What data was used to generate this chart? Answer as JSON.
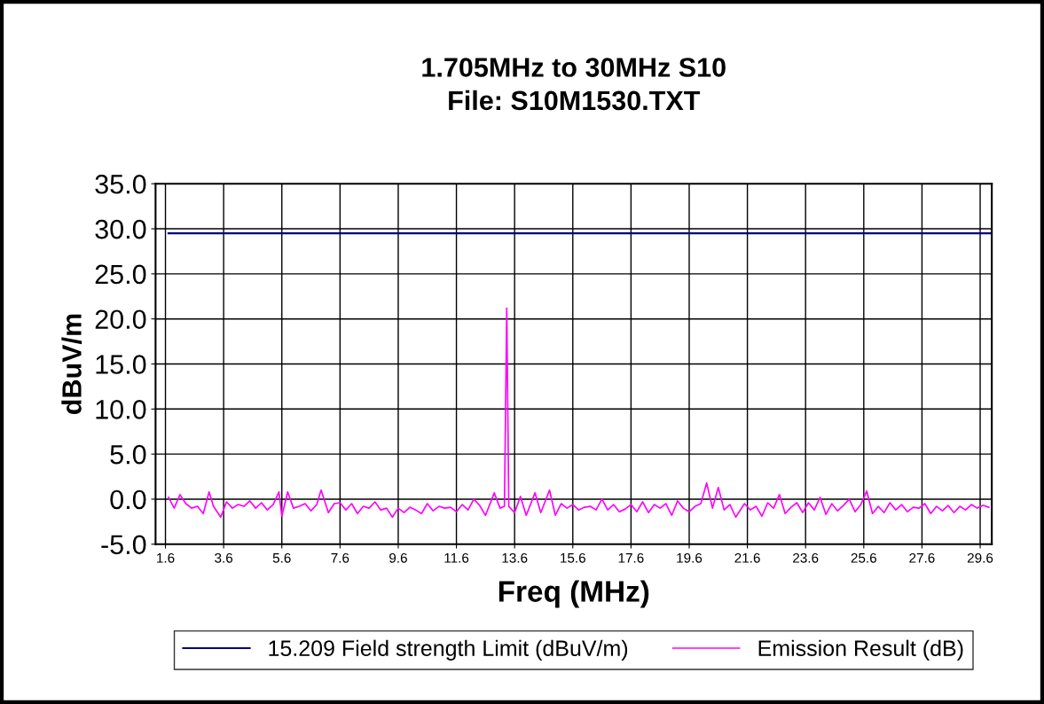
{
  "chart_data": {
    "type": "line",
    "title": "1.705MHz to 30MHz S10\nFile: S10M1530.TXT",
    "xlabel": "Freq (MHz)",
    "ylabel": "dBuV/m",
    "xlim": [
      1.26,
      30.0
    ],
    "xticks": [
      1.6,
      3.6,
      5.6,
      7.6,
      9.6,
      11.6,
      13.6,
      15.6,
      17.6,
      19.6,
      21.6,
      23.6,
      25.6,
      27.6,
      29.6
    ],
    "ylim": [
      -5,
      35
    ],
    "yticks": [
      {
        "value": -5,
        "label": "-5.0"
      },
      {
        "value": 0,
        "label": "0.0"
      },
      {
        "value": 5,
        "label": "5.0"
      },
      {
        "value": 10,
        "label": "10.0"
      },
      {
        "value": 15,
        "label": "15.0"
      },
      {
        "value": 20,
        "label": "20.0"
      },
      {
        "value": 25,
        "label": "25.0"
      },
      {
        "value": 30,
        "label": "30.0"
      },
      {
        "value": 35,
        "label": "35.0"
      }
    ],
    "grid": true,
    "legend": "bottom",
    "marker": "none",
    "line_style": "solid",
    "series": [
      {
        "name": "15.209 Field strength Limit (dBuV/m)",
        "color": "#000080",
        "x": [
          1.705,
          30.0
        ],
        "values": [
          29.5,
          29.5
        ]
      },
      {
        "name": "Emission Result (dB)",
        "color": "#ff00ff",
        "x": [
          1.705,
          1.9,
          2.1,
          2.3,
          2.5,
          2.7,
          2.9,
          3.1,
          3.25,
          3.5,
          3.7,
          3.9,
          4.1,
          4.3,
          4.5,
          4.7,
          4.9,
          5.1,
          5.3,
          5.5,
          5.6,
          5.8,
          6.0,
          6.2,
          6.4,
          6.6,
          6.8,
          6.95,
          7.2,
          7.4,
          7.6,
          7.8,
          8.0,
          8.2,
          8.4,
          8.6,
          8.8,
          9.0,
          9.2,
          9.4,
          9.6,
          9.8,
          10.0,
          10.2,
          10.4,
          10.6,
          10.8,
          11.0,
          11.2,
          11.4,
          11.6,
          11.8,
          12.0,
          12.2,
          12.4,
          12.6,
          12.9,
          13.1,
          13.25,
          13.33,
          13.4,
          13.6,
          13.8,
          14.0,
          14.3,
          14.5,
          14.8,
          15.0,
          15.2,
          15.4,
          15.6,
          15.8,
          16.0,
          16.2,
          16.4,
          16.6,
          16.8,
          17.0,
          17.2,
          17.4,
          17.6,
          17.8,
          18.0,
          18.2,
          18.4,
          18.6,
          18.8,
          19.0,
          19.2,
          19.4,
          19.6,
          19.8,
          20.0,
          20.2,
          20.4,
          20.6,
          20.8,
          21.0,
          21.2,
          21.5,
          21.7,
          21.9,
          22.1,
          22.3,
          22.5,
          22.7,
          22.9,
          23.1,
          23.3,
          23.5,
          23.7,
          23.9,
          24.1,
          24.3,
          24.5,
          24.7,
          24.9,
          25.1,
          25.3,
          25.5,
          25.7,
          25.9,
          26.1,
          26.3,
          26.5,
          26.7,
          26.9,
          27.1,
          27.3,
          27.5,
          27.7,
          27.9,
          28.1,
          28.3,
          28.5,
          28.7,
          28.9,
          29.1,
          29.3,
          29.5,
          29.7,
          29.9
        ],
        "values": [
          0.2,
          -1.0,
          0.5,
          -0.5,
          -1.0,
          -0.8,
          -1.6,
          0.8,
          -0.8,
          -2.0,
          -0.3,
          -1.0,
          -0.6,
          -0.8,
          -0.2,
          -1.0,
          -0.4,
          -1.2,
          -0.6,
          0.8,
          -1.9,
          0.8,
          -1.0,
          -0.8,
          -0.5,
          -1.3,
          -0.6,
          1.0,
          -1.5,
          -0.5,
          -0.4,
          -1.2,
          -0.5,
          -1.6,
          -0.8,
          -1.0,
          -0.3,
          -1.2,
          -1.0,
          -2.0,
          -1.0,
          -1.5,
          -0.9,
          -1.2,
          -1.6,
          -0.5,
          -1.3,
          -0.8,
          -1.0,
          -0.9,
          -1.4,
          -0.6,
          -1.2,
          0.0,
          -0.7,
          -1.8,
          0.7,
          -1.0,
          -0.8,
          21.2,
          -0.8,
          -1.5,
          0.3,
          -1.8,
          0.7,
          -1.5,
          1.0,
          -1.8,
          -0.5,
          -1.0,
          -0.6,
          -1.2,
          -0.9,
          -0.8,
          -1.2,
          0.0,
          -1.2,
          -0.6,
          -1.4,
          -1.1,
          -0.6,
          -1.4,
          -0.3,
          -1.5,
          -0.6,
          -1.0,
          -0.5,
          -1.8,
          -0.2,
          -1.0,
          -1.4,
          -0.8,
          -0.5,
          1.8,
          -1.0,
          1.3,
          -1.2,
          -0.6,
          -2.0,
          -0.5,
          -1.2,
          -0.8,
          -1.9,
          -0.4,
          -1.0,
          0.5,
          -1.6,
          -0.9,
          -0.4,
          -1.5,
          -0.4,
          -1.2,
          0.2,
          -1.7,
          -0.5,
          -1.3,
          -0.7,
          0.0,
          -1.4,
          -0.6,
          0.9,
          -1.6,
          -0.8,
          -1.5,
          -0.4,
          -1.2,
          -0.6,
          -1.4,
          -0.9,
          -1.0,
          -0.5,
          -1.6,
          -0.8,
          -1.3,
          -0.7,
          -1.5,
          -0.8,
          -1.2,
          -0.6,
          -1.0,
          -0.7,
          -0.9
        ]
      }
    ]
  }
}
